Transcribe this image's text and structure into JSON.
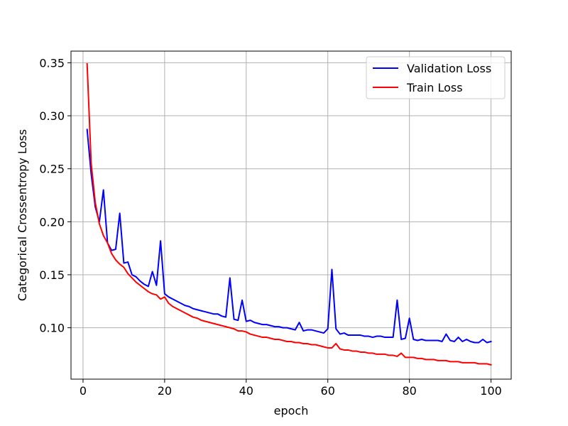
{
  "chart_data": {
    "type": "line",
    "title": "",
    "xlabel": "epoch",
    "ylabel": "Categorical Crossentropy Loss",
    "xlim": [
      -2.95,
      104.95
    ],
    "ylim": [
      0.0515,
      0.361
    ],
    "xticks": [
      0,
      20,
      40,
      60,
      80,
      100
    ],
    "xtick_labels": [
      "0",
      "20",
      "40",
      "60",
      "80",
      "100"
    ],
    "yticks": [
      0.1,
      0.15,
      0.2,
      0.25,
      0.3,
      0.35
    ],
    "ytick_labels": [
      "0.10",
      "0.15",
      "0.20",
      "0.25",
      "0.30",
      "0.35"
    ],
    "grid": true,
    "legend_position": "top-right",
    "x": [
      1,
      2,
      3,
      4,
      5,
      6,
      7,
      8,
      9,
      10,
      11,
      12,
      13,
      14,
      15,
      16,
      17,
      18,
      19,
      20,
      21,
      22,
      23,
      24,
      25,
      26,
      27,
      28,
      29,
      30,
      31,
      32,
      33,
      34,
      35,
      36,
      37,
      38,
      39,
      40,
      41,
      42,
      43,
      44,
      45,
      46,
      47,
      48,
      49,
      50,
      51,
      52,
      53,
      54,
      55,
      56,
      57,
      58,
      59,
      60,
      61,
      62,
      63,
      64,
      65,
      66,
      67,
      68,
      69,
      70,
      71,
      72,
      73,
      74,
      75,
      76,
      77,
      78,
      79,
      80,
      81,
      82,
      83,
      84,
      85,
      86,
      87,
      88,
      89,
      90,
      91,
      92,
      93,
      94,
      95,
      96,
      97,
      98,
      99,
      100
    ],
    "series": [
      {
        "name": "Validation Loss",
        "color": "#0000ff",
        "values": [
          0.287,
          0.245,
          0.214,
          0.2,
          0.23,
          0.18,
          0.173,
          0.174,
          0.208,
          0.161,
          0.162,
          0.15,
          0.148,
          0.144,
          0.141,
          0.139,
          0.153,
          0.14,
          0.182,
          0.132,
          0.129,
          0.127,
          0.125,
          0.123,
          0.121,
          0.12,
          0.118,
          0.117,
          0.116,
          0.115,
          0.114,
          0.113,
          0.113,
          0.111,
          0.11,
          0.147,
          0.108,
          0.107,
          0.126,
          0.106,
          0.107,
          0.105,
          0.104,
          0.103,
          0.103,
          0.102,
          0.101,
          0.101,
          0.1,
          0.1,
          0.099,
          0.098,
          0.105,
          0.097,
          0.098,
          0.098,
          0.097,
          0.096,
          0.095,
          0.099,
          0.155,
          0.099,
          0.094,
          0.095,
          0.093,
          0.093,
          0.093,
          0.093,
          0.092,
          0.092,
          0.091,
          0.092,
          0.092,
          0.091,
          0.091,
          0.091,
          0.126,
          0.089,
          0.09,
          0.109,
          0.089,
          0.088,
          0.089,
          0.088,
          0.088,
          0.088,
          0.088,
          0.087,
          0.094,
          0.088,
          0.087,
          0.091,
          0.087,
          0.089,
          0.087,
          0.086,
          0.086,
          0.089,
          0.086,
          0.087
        ]
      },
      {
        "name": "Train Loss",
        "color": "#ff0000",
        "values": [
          0.349,
          0.255,
          0.218,
          0.198,
          0.187,
          0.18,
          0.17,
          0.164,
          0.16,
          0.157,
          0.151,
          0.147,
          0.143,
          0.14,
          0.137,
          0.134,
          0.132,
          0.131,
          0.127,
          0.129,
          0.123,
          0.12,
          0.118,
          0.116,
          0.114,
          0.112,
          0.11,
          0.109,
          0.107,
          0.106,
          0.105,
          0.104,
          0.103,
          0.102,
          0.101,
          0.1,
          0.099,
          0.097,
          0.097,
          0.096,
          0.094,
          0.093,
          0.092,
          0.091,
          0.091,
          0.09,
          0.089,
          0.089,
          0.088,
          0.087,
          0.087,
          0.086,
          0.086,
          0.085,
          0.085,
          0.084,
          0.084,
          0.083,
          0.082,
          0.081,
          0.081,
          0.085,
          0.08,
          0.079,
          0.079,
          0.078,
          0.078,
          0.077,
          0.077,
          0.076,
          0.076,
          0.075,
          0.075,
          0.075,
          0.074,
          0.074,
          0.073,
          0.076,
          0.072,
          0.072,
          0.072,
          0.071,
          0.071,
          0.07,
          0.07,
          0.07,
          0.069,
          0.069,
          0.069,
          0.068,
          0.068,
          0.068,
          0.067,
          0.067,
          0.067,
          0.067,
          0.066,
          0.066,
          0.066,
          0.065
        ]
      }
    ]
  }
}
